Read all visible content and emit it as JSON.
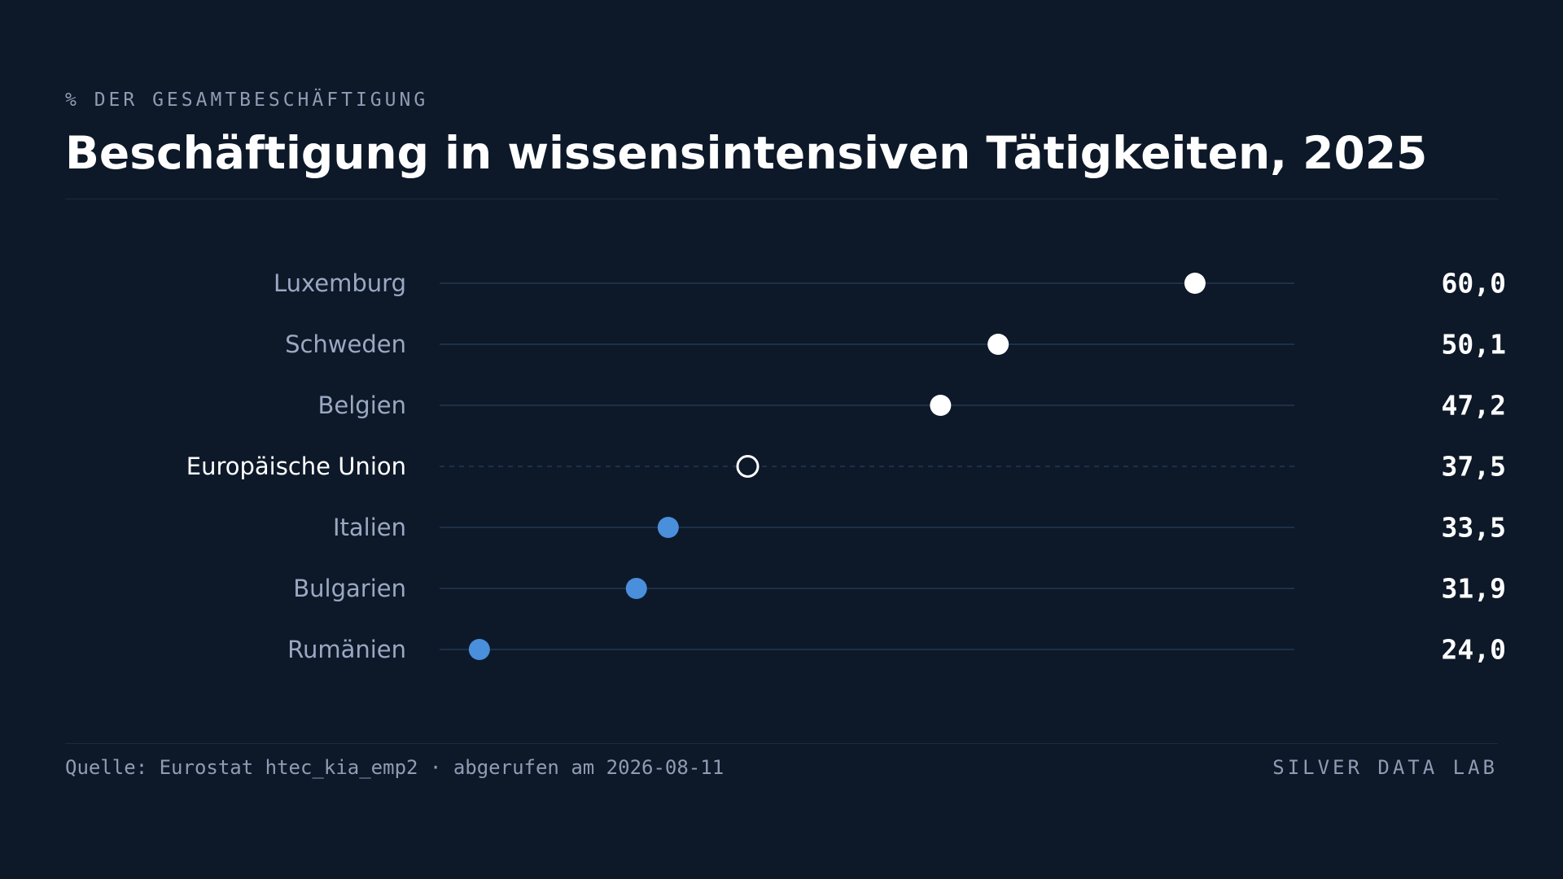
{
  "header": {
    "kicker": "% DER GESAMTBESCHÄFTIGUNG",
    "title": "Beschäftigung in wissensintensiven Tätigkeiten, 2025"
  },
  "footer": {
    "source": "Quelle: Eurostat htec_kia_emp2 · abgerufen am 2026-08-11",
    "brand": "SILVER DATA LAB"
  },
  "colors": {
    "background": "#0d1929",
    "track": "#1e3048",
    "dot_above_reference": "#ffffff",
    "dot_below_reference": "#4a8fdb",
    "label": "#9aa8c2",
    "reference_label": "#ffffff",
    "value": "#ffffff"
  },
  "chart_data": {
    "type": "dot",
    "unit": "% der Gesamtbeschäftigung",
    "xlim": [
      22,
      65
    ],
    "grid": false,
    "reference_category": "Europäische Union",
    "categories": [
      "Luxemburg",
      "Schweden",
      "Belgien",
      "Europäische Union",
      "Italien",
      "Bulgarien",
      "Rumänien"
    ],
    "values": [
      60.0,
      50.1,
      47.2,
      37.5,
      33.5,
      31.9,
      24.0
    ],
    "value_labels": [
      "60,0",
      "50,1",
      "47,2",
      "37,5",
      "33,5",
      "31,9",
      "24,0"
    ]
  }
}
